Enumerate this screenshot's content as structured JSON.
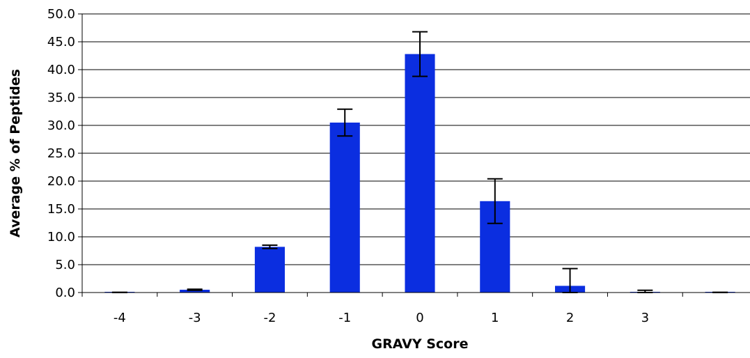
{
  "chart_data": {
    "type": "bar",
    "xlabel": "GRAVY Score",
    "ylabel": "Average % of Peptides",
    "ylim": [
      0,
      50
    ],
    "y_ticks": [
      "0.0",
      "5.0",
      "10.0",
      "15.0",
      "20.0",
      "25.0",
      "30.0",
      "35.0",
      "40.0",
      "45.0",
      "50.0"
    ],
    "x_ticks": [
      "-4",
      "-3",
      "-2",
      "-1",
      "0",
      "1",
      "2",
      "3",
      ""
    ],
    "categories": [
      "-4",
      "-3",
      "-2",
      "-1",
      "0",
      "1",
      "2",
      "3",
      ""
    ],
    "values": [
      0.0,
      0.5,
      8.2,
      30.5,
      42.8,
      16.4,
      1.2,
      0.1,
      0.0
    ],
    "error": [
      0.05,
      0.1,
      0.3,
      2.4,
      4.0,
      4.0,
      3.1,
      0.3,
      0.05
    ],
    "bar_color": "#0b2ee0",
    "grid": true,
    "legend": "none"
  }
}
